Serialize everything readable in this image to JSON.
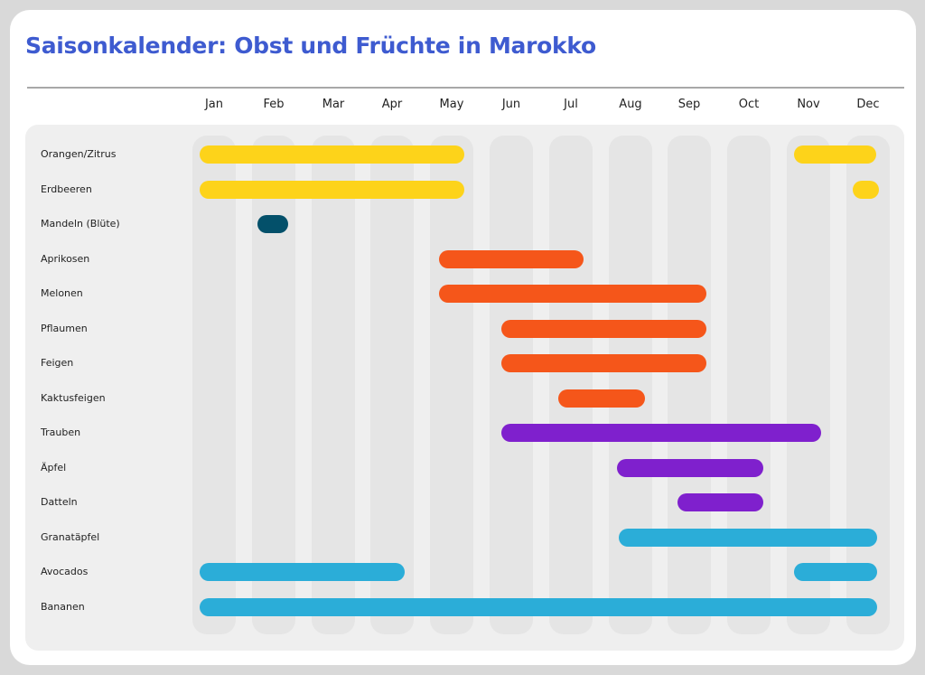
{
  "title": "Saisonkalender: Obst und Früchte in Marokko",
  "months": [
    "Jan",
    "Feb",
    "Mar",
    "Apr",
    "May",
    "Jun",
    "Jul",
    "Aug",
    "Sep",
    "Oct",
    "Nov",
    "Dec"
  ],
  "colors": {
    "yellow": "#fdd31a",
    "teal": "#03506a",
    "orange": "#f5561a",
    "purple": "#7f20cd",
    "blue": "#2badd8",
    "title": "#3e5bd0"
  },
  "rows": [
    {
      "label": "Orangen/Zitrus",
      "color": "yellow",
      "bars": [
        [
          221,
          514
        ],
        [
          879,
          970
        ]
      ]
    },
    {
      "label": "Erdbeeren",
      "color": "yellow",
      "bars": [
        [
          221,
          514
        ],
        [
          944,
          973
        ]
      ]
    },
    {
      "label": "Mandeln (Blüte)",
      "color": "teal",
      "bars": [
        [
          285,
          319
        ]
      ]
    },
    {
      "label": "Aprikosen",
      "color": "orange",
      "bars": [
        [
          486,
          646
        ]
      ]
    },
    {
      "label": "Melonen",
      "color": "orange",
      "bars": [
        [
          486,
          782
        ]
      ]
    },
    {
      "label": "Pflaumen",
      "color": "orange",
      "bars": [
        [
          555,
          782
        ]
      ]
    },
    {
      "label": "Feigen",
      "color": "orange",
      "bars": [
        [
          555,
          782
        ]
      ]
    },
    {
      "label": "Kaktusfeigen",
      "color": "orange",
      "bars": [
        [
          618,
          714
        ]
      ]
    },
    {
      "label": "Trauben",
      "color": "purple",
      "bars": [
        [
          555,
          909
        ]
      ]
    },
    {
      "label": "Äpfel",
      "color": "purple",
      "bars": [
        [
          683,
          845
        ]
      ]
    },
    {
      "label": "Datteln",
      "color": "purple",
      "bars": [
        [
          750,
          845
        ]
      ]
    },
    {
      "label": "Granatäpfel",
      "color": "blue",
      "bars": [
        [
          685,
          971
        ]
      ]
    },
    {
      "label": "Avocados",
      "color": "blue",
      "bars": [
        [
          221,
          448
        ],
        [
          879,
          971
        ]
      ]
    },
    {
      "label": "Bananen",
      "color": "blue",
      "bars": [
        [
          221,
          971
        ]
      ]
    }
  ],
  "chart_data": {
    "type": "gantt",
    "title": "Saisonkalender: Obst und Früchte in Marokko",
    "xlabel": "",
    "ylabel": "",
    "categories": [
      "Jan",
      "Feb",
      "Mar",
      "Apr",
      "May",
      "Jun",
      "Jul",
      "Aug",
      "Sep",
      "Oct",
      "Nov",
      "Dec"
    ],
    "series": [
      {
        "name": "Orangen/Zitrus",
        "color": "#fdd31a",
        "ranges": [
          [
            "Jan",
            "May"
          ],
          [
            "Nov",
            "Dec"
          ]
        ]
      },
      {
        "name": "Erdbeeren",
        "color": "#fdd31a",
        "ranges": [
          [
            "Jan",
            "May"
          ],
          [
            "Dec",
            "Dec"
          ]
        ]
      },
      {
        "name": "Mandeln (Blüte)",
        "color": "#03506a",
        "ranges": [
          [
            "Feb",
            "Feb"
          ]
        ]
      },
      {
        "name": "Aprikosen",
        "color": "#f5561a",
        "ranges": [
          [
            "May",
            "Jul"
          ]
        ]
      },
      {
        "name": "Melonen",
        "color": "#f5561a",
        "ranges": [
          [
            "May",
            "Sep"
          ]
        ]
      },
      {
        "name": "Pflaumen",
        "color": "#f5561a",
        "ranges": [
          [
            "Jun",
            "Sep"
          ]
        ]
      },
      {
        "name": "Feigen",
        "color": "#f5561a",
        "ranges": [
          [
            "Jun",
            "Sep"
          ]
        ]
      },
      {
        "name": "Kaktusfeigen",
        "color": "#f5561a",
        "ranges": [
          [
            "Jul",
            "Aug"
          ]
        ]
      },
      {
        "name": "Trauben",
        "color": "#7f20cd",
        "ranges": [
          [
            "Jun",
            "Nov"
          ]
        ]
      },
      {
        "name": "Äpfel",
        "color": "#7f20cd",
        "ranges": [
          [
            "Aug",
            "Oct"
          ]
        ]
      },
      {
        "name": "Datteln",
        "color": "#7f20cd",
        "ranges": [
          [
            "Sep",
            "Oct"
          ]
        ]
      },
      {
        "name": "Granatäpfel",
        "color": "#2badd8",
        "ranges": [
          [
            "Aug",
            "Dec"
          ]
        ]
      },
      {
        "name": "Avocados",
        "color": "#2badd8",
        "ranges": [
          [
            "Jan",
            "Apr"
          ],
          [
            "Nov",
            "Dec"
          ]
        ]
      },
      {
        "name": "Bananen",
        "color": "#2badd8",
        "ranges": [
          [
            "Jan",
            "Dec"
          ]
        ]
      }
    ],
    "grid": false,
    "legend": "none"
  }
}
